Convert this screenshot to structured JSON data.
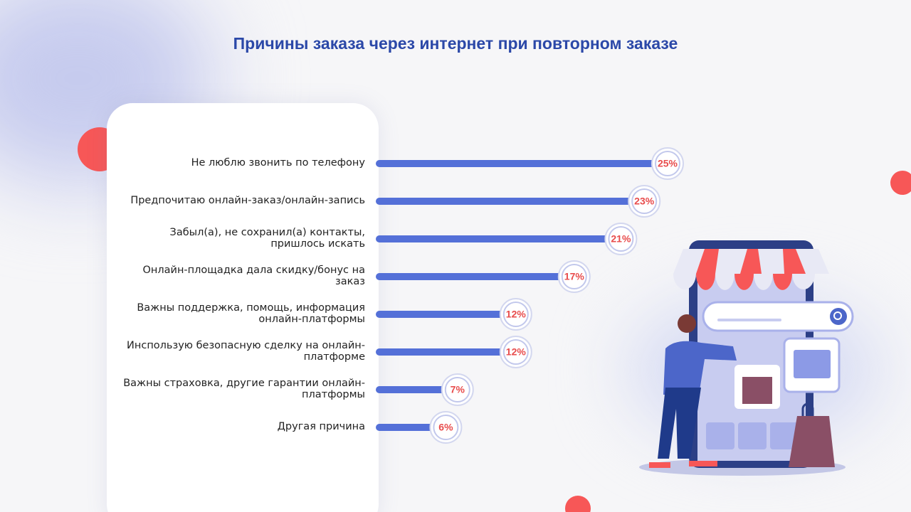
{
  "chart_data": {
    "type": "bar",
    "orientation": "horizontal",
    "title": "Причины заказа через интернет при повторном заказе",
    "categories": [
      "Не люблю звонить по телефону",
      "Предпочитаю онлайн-заказ/онлайн-запись",
      "Забыл(а), не сохранил(а) контакты, пришлось искать",
      "Онлайн-площадка дала скидку/бонус на заказ",
      "Важны поддержка, помощь, информация онлайн-платформы",
      "Инспользую безопасную сделку на онлайн-платформе",
      "Важны страховка, другие гарантии онлайн-платформы",
      "Другая причина"
    ],
    "values": [
      25,
      23,
      21,
      17,
      12,
      12,
      7,
      6
    ],
    "value_labels": [
      "25%",
      "23%",
      "21%",
      "17%",
      "12%",
      "12%",
      "7%",
      "6%"
    ],
    "color": "#5470d8"
  }
}
